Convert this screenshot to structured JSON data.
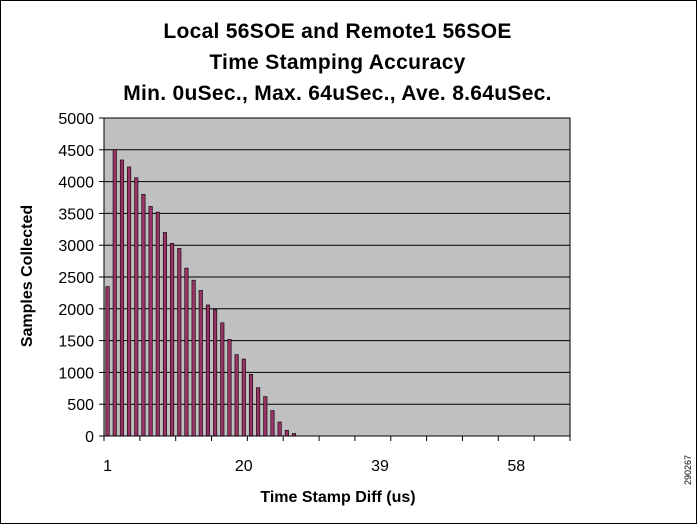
{
  "figure_id": "290267",
  "chart_data": {
    "type": "bar",
    "title_lines": [
      "Local 56SOE and Remote1 56SOE",
      "Time Stamping Accuracy",
      "Min. 0uSec.,  Max. 64uSec., Ave. 8.64uSec."
    ],
    "xlabel": "Time Stamp Diff (us)",
    "ylabel": "Samples Collected",
    "x_tick_labels": [
      "1",
      "20",
      "39",
      "58"
    ],
    "y_tick_labels": [
      "0",
      "500",
      "1000",
      "1500",
      "2000",
      "2500",
      "3000",
      "3500",
      "4000",
      "4500",
      "5000"
    ],
    "ylim": [
      0,
      5000
    ],
    "grid": "horizontal",
    "colors": {
      "plot_background": "#c0c0c0",
      "bar_fill": "#993366",
      "bar_stroke": "#000000"
    },
    "categories": [
      1,
      2,
      3,
      4,
      5,
      6,
      7,
      8,
      9,
      10,
      11,
      12,
      13,
      14,
      15,
      16,
      17,
      18,
      19,
      20,
      21,
      22,
      23,
      24,
      25,
      26,
      27,
      28,
      29,
      30,
      31,
      32,
      33,
      34,
      35,
      36,
      37,
      38,
      39,
      40,
      41,
      42,
      43,
      44,
      45,
      46,
      47,
      48,
      49,
      50,
      51,
      52,
      53,
      54,
      55,
      56,
      57,
      58,
      59,
      60,
      61,
      62,
      63,
      64,
      65
    ],
    "values": [
      2350,
      4500,
      4340,
      4230,
      4060,
      3800,
      3610,
      3520,
      3200,
      3030,
      2950,
      2640,
      2450,
      2290,
      2060,
      1990,
      1780,
      1520,
      1280,
      1210,
      970,
      760,
      620,
      400,
      220,
      90,
      40,
      0,
      0,
      0,
      0,
      0,
      0,
      0,
      0,
      0,
      0,
      0,
      0,
      0,
      0,
      0,
      0,
      0,
      0,
      0,
      0,
      0,
      0,
      0,
      0,
      0,
      0,
      0,
      0,
      0,
      0,
      0,
      0,
      0,
      0,
      0,
      0,
      0,
      0
    ]
  }
}
